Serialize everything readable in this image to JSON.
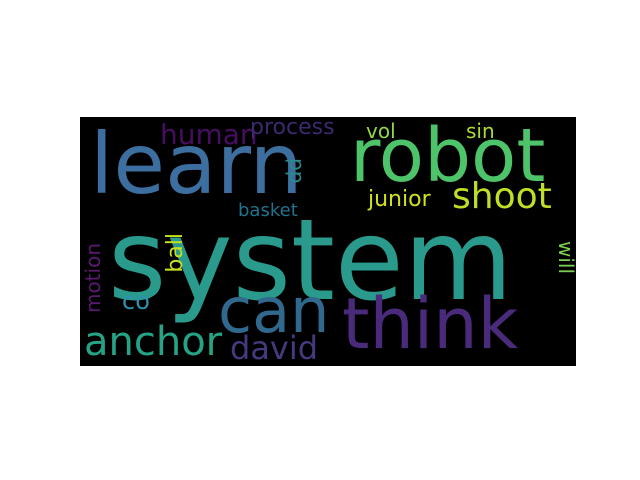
{
  "wordcloud": {
    "words": {
      "system": {
        "text": "system",
        "color": "#2a9a8c"
      },
      "learn": {
        "text": "learn",
        "color": "#3c6fa0"
      },
      "robot": {
        "text": "robot",
        "color": "#4ec46a"
      },
      "think": {
        "text": "think",
        "color": "#4a2a7a"
      },
      "can": {
        "text": "can",
        "color": "#31688e"
      },
      "anchor": {
        "text": "anchor",
        "color": "#25a384"
      },
      "david": {
        "text": "david",
        "color": "#433a80"
      },
      "shoot": {
        "text": "shoot",
        "color": "#bddf26"
      },
      "human": {
        "text": "human",
        "color": "#470d60"
      },
      "process": {
        "text": "process",
        "color": "#3b2a6e"
      },
      "vol": {
        "text": "vol",
        "color": "#90d743"
      },
      "sin": {
        "text": "sin",
        "color": "#aadc32"
      },
      "junior": {
        "text": "junior",
        "color": "#d2e21b"
      },
      "basket": {
        "text": "basket",
        "color": "#22728e"
      },
      "co": {
        "text": "co",
        "color": "#2c92b0"
      },
      "pp": {
        "text": "pp",
        "color": "#2d8a8c"
      },
      "ball": {
        "text": "ball",
        "color": "#c8e020"
      },
      "motion": {
        "text": "motion",
        "color": "#5a1a70"
      },
      "will": {
        "text": "will",
        "color": "#7ad151"
      }
    }
  }
}
